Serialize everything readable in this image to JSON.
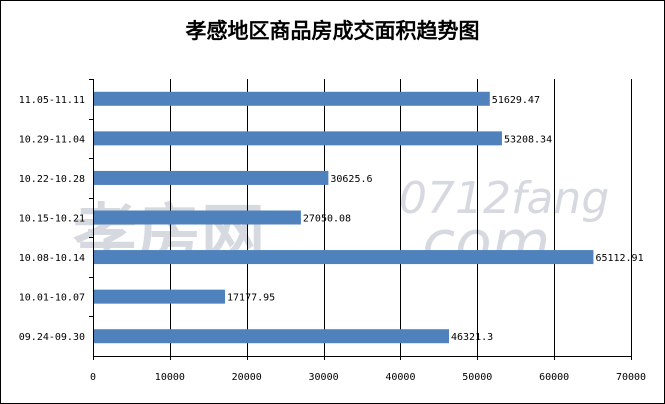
{
  "chart_data": {
    "type": "bar",
    "orientation": "horizontal",
    "title": "孝感地区商品房成交面积趋势图",
    "categories": [
      "11.05-11.11",
      "10.29-11.04",
      "10.22-10.28",
      "10.15-10.21",
      "10.08-10.14",
      "10.01-10.07",
      "09.24-09.30"
    ],
    "values": [
      51629.47,
      53208.34,
      30625.6,
      27050.08,
      65112.91,
      17177.95,
      46321.3
    ],
    "value_labels": [
      "51629.47",
      "53208.34",
      "30625.6",
      "27050.08",
      "65112.91",
      "17177.95",
      "46321.3"
    ],
    "xlim": [
      0,
      70000
    ],
    "xticks": [
      "0",
      "10000",
      "20000",
      "30000",
      "40000",
      "50000",
      "60000",
      "70000"
    ],
    "grid": true,
    "bar_color": "#4f81bd",
    "watermark": "孝房网 0712fang .com"
  }
}
